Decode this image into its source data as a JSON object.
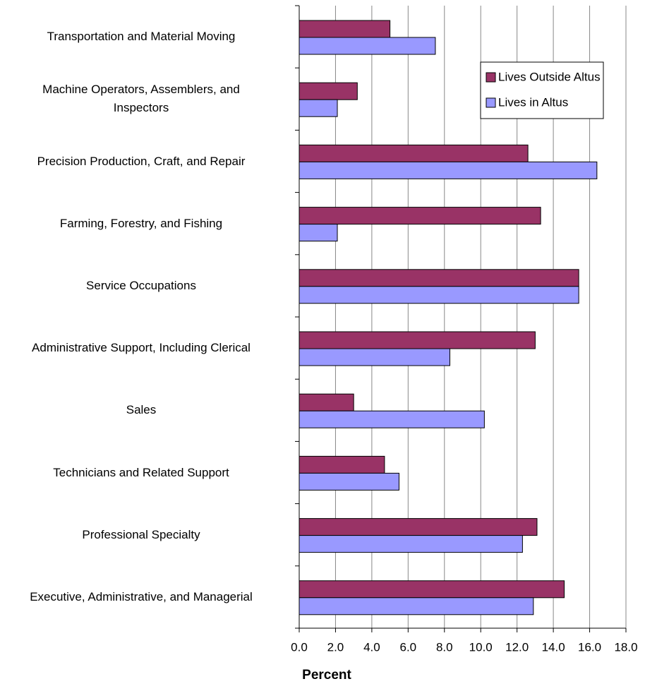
{
  "chart_data": {
    "type": "barh",
    "xlabel": "Percent",
    "categories": [
      "Transportation and Material Moving",
      "Machine Operators, Assemblers, and\nInspectors",
      "Precision Production, Craft, and Repair",
      "Farming, Forestry, and Fishing",
      "Service Occupations",
      "Administrative Support, Including Clerical",
      "Sales",
      "Technicians and Related Support",
      "Professional Specialty",
      "Executive, Administrative, and Managerial"
    ],
    "series": [
      {
        "name": "Lives Outside Altus",
        "color": "#993366",
        "values": [
          5.0,
          3.2,
          12.6,
          13.3,
          15.4,
          13.0,
          3.0,
          4.7,
          13.1,
          14.6
        ]
      },
      {
        "name": "Lives in Altus",
        "color": "#9999ff",
        "values": [
          7.5,
          2.1,
          16.4,
          2.1,
          15.4,
          8.3,
          10.2,
          5.5,
          12.3,
          12.9
        ]
      }
    ],
    "xlim": [
      0,
      18
    ],
    "xticks": [
      {
        "value": 0,
        "label": "0.0"
      },
      {
        "value": 2,
        "label": "2.0"
      },
      {
        "value": 4,
        "label": "4.0"
      },
      {
        "value": 6,
        "label": "6.0"
      },
      {
        "value": 8,
        "label": "8.0"
      },
      {
        "value": 10,
        "label": "10.0"
      },
      {
        "value": 12,
        "label": "12.0"
      },
      {
        "value": 14,
        "label": "14.0"
      },
      {
        "value": 16,
        "label": "16.0"
      },
      {
        "value": 18,
        "label": "18.0"
      }
    ],
    "grid": true,
    "legend": "upper right"
  }
}
